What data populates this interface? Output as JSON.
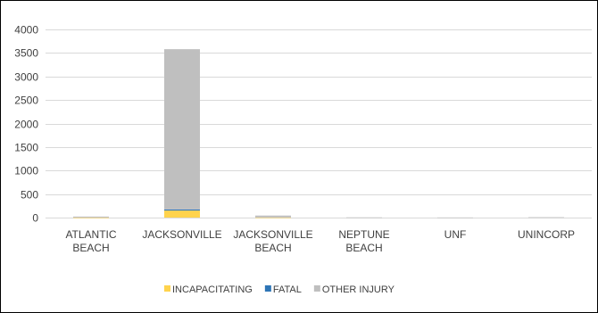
{
  "chart_data": {
    "type": "bar",
    "stacked": true,
    "title": "",
    "xlabel": "",
    "ylabel": "",
    "ylim": [
      0,
      4000
    ],
    "yticks": [
      0,
      500,
      1000,
      1500,
      2000,
      2500,
      3000,
      3500,
      4000
    ],
    "grid": true,
    "legend_position": "bottom",
    "categories": [
      [
        "ATLANTIC",
        "BEACH"
      ],
      [
        "JACKSONVILLE"
      ],
      [
        "JACKSONVILLE",
        "BEACH"
      ],
      [
        "NEPTUNE",
        "BEACH"
      ],
      [
        "UNF"
      ],
      [
        "UNINCORP"
      ]
    ],
    "series": [
      {
        "name": "INCAPACITATING",
        "color": "#FFD34D",
        "values": [
          2,
          150,
          3,
          0,
          0,
          0
        ]
      },
      {
        "name": "FATAL",
        "color": "#2E75B6",
        "values": [
          0,
          22,
          0,
          0,
          0,
          0
        ]
      },
      {
        "name": "OTHER INJURY",
        "color": "#BFBFBF",
        "values": [
          20,
          3408,
          40,
          5,
          3,
          8
        ]
      }
    ]
  }
}
